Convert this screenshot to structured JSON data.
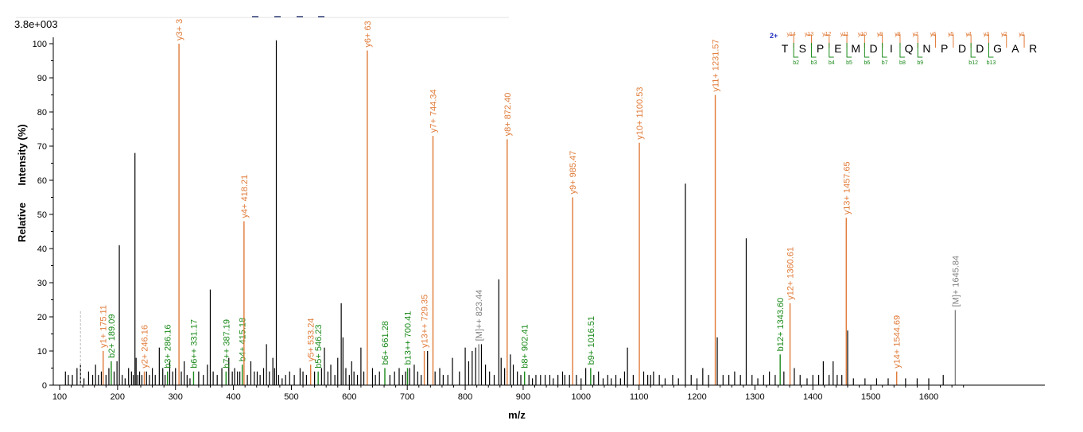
{
  "colors": {
    "y_ion": "#e07b39",
    "b_ion": "#1a8a1a",
    "precursor": "#808080",
    "other": "#000000",
    "axis": "#000000"
  },
  "chart_data": {
    "type": "bar",
    "title": "",
    "scale_label": "3.8e+003",
    "xlabel": "m/z",
    "ylabel_parts": [
      "Relative",
      "Intensity (%)"
    ],
    "xlim": [
      95,
      1668
    ],
    "ylim": [
      0,
      102
    ],
    "x_ticks": [
      100,
      200,
      300,
      400,
      500,
      600,
      700,
      800,
      900,
      1000,
      1100,
      1200,
      1300,
      1400,
      1500,
      1600
    ],
    "y_ticks": [
      0,
      10,
      20,
      30,
      40,
      50,
      60,
      70,
      80,
      90,
      100
    ],
    "labeled_peaks": [
      {
        "mz": 175.11,
        "intensity": 10,
        "ion": "y",
        "label": "y1+ 175.11"
      },
      {
        "mz": 189.09,
        "intensity": 7,
        "ion": "b",
        "label": "b2+ 189.09"
      },
      {
        "mz": 246.16,
        "intensity": 4,
        "ion": "y",
        "label": "y2+ 246.16"
      },
      {
        "mz": 286.16,
        "intensity": 4,
        "ion": "b",
        "label": "b3+ 286.16"
      },
      {
        "mz": 306.0,
        "intensity": 100,
        "ion": "y",
        "label": "y3+ 3"
      },
      {
        "mz": 331.17,
        "intensity": 4,
        "ion": "b",
        "label": "b6++ 331.17"
      },
      {
        "mz": 387.19,
        "intensity": 4,
        "ion": "b",
        "label": "b7++ 387.19"
      },
      {
        "mz": 415.18,
        "intensity": 6,
        "ion": "b",
        "label": "b4+ 415.18"
      },
      {
        "mz": 418.21,
        "intensity": 48,
        "ion": "y",
        "label": "y4+ 418.21"
      },
      {
        "mz": 533.24,
        "intensity": 6,
        "ion": "y",
        "label": "y5+ 533.24"
      },
      {
        "mz": 546.23,
        "intensity": 4,
        "ion": "b",
        "label": "b5+ 546.23"
      },
      {
        "mz": 631.0,
        "intensity": 98,
        "ion": "y",
        "label": "y6+ 63"
      },
      {
        "mz": 661.28,
        "intensity": 5,
        "ion": "b",
        "label": "b6+ 661.28"
      },
      {
        "mz": 700.41,
        "intensity": 5,
        "ion": "b",
        "label": "b13++ 700.41"
      },
      {
        "mz": 729.35,
        "intensity": 10,
        "ion": "y",
        "label": "y13++ 729.35"
      },
      {
        "mz": 744.34,
        "intensity": 73,
        "ion": "y",
        "label": "y7+ 744.34"
      },
      {
        "mz": 823.44,
        "intensity": 12,
        "ion": "p",
        "label": "[M]++ 823.44"
      },
      {
        "mz": 872.4,
        "intensity": 72,
        "ion": "y",
        "label": "y8+ 872.40"
      },
      {
        "mz": 902.41,
        "intensity": 4,
        "ion": "b",
        "label": "b8+ 902.41"
      },
      {
        "mz": 985.47,
        "intensity": 55,
        "ion": "y",
        "label": "y9+ 985.47"
      },
      {
        "mz": 1016.51,
        "intensity": 5,
        "ion": "b",
        "label": "b9+ 1016.51"
      },
      {
        "mz": 1100.53,
        "intensity": 71,
        "ion": "y",
        "label": "y10+ 1100.53"
      },
      {
        "mz": 1231.57,
        "intensity": 85,
        "ion": "y",
        "label": "y11+ 1231.57"
      },
      {
        "mz": 1343.6,
        "intensity": 9,
        "ion": "b",
        "label": "b12+ 1343.60"
      },
      {
        "mz": 1360.61,
        "intensity": 24,
        "ion": "y",
        "label": "y12+ 1360.61"
      },
      {
        "mz": 1457.65,
        "intensity": 49,
        "ion": "y",
        "label": "y13+ 1457.65"
      },
      {
        "mz": 1544.69,
        "intensity": 4,
        "ion": "y",
        "label": "y14+ 1544.69"
      },
      {
        "mz": 1645.84,
        "intensity": 22,
        "ion": "p",
        "label": "[M]+ 1645.84"
      }
    ],
    "unlabeled_peaks": [
      [
        110,
        4
      ],
      [
        115,
        3
      ],
      [
        122,
        3
      ],
      [
        130,
        5
      ],
      [
        136,
        6
      ],
      [
        142,
        2
      ],
      [
        150,
        4
      ],
      [
        157,
        3
      ],
      [
        162,
        6
      ],
      [
        167,
        3
      ],
      [
        172,
        4
      ],
      [
        180,
        3
      ],
      [
        185,
        5
      ],
      [
        194,
        4
      ],
      [
        199,
        7
      ],
      [
        203,
        41
      ],
      [
        208,
        3
      ],
      [
        213,
        2
      ],
      [
        219,
        5
      ],
      [
        224,
        4
      ],
      [
        227,
        3
      ],
      [
        230,
        68
      ],
      [
        232,
        8
      ],
      [
        235,
        3
      ],
      [
        238,
        4
      ],
      [
        242,
        3
      ],
      [
        250,
        4
      ],
      [
        255,
        3
      ],
      [
        260,
        5
      ],
      [
        265,
        3
      ],
      [
        272,
        11
      ],
      [
        278,
        5
      ],
      [
        282,
        3
      ],
      [
        290,
        7
      ],
      [
        295,
        4
      ],
      [
        300,
        5
      ],
      [
        310,
        4
      ],
      [
        315,
        7
      ],
      [
        320,
        3
      ],
      [
        325,
        2
      ],
      [
        340,
        4
      ],
      [
        348,
        3
      ],
      [
        355,
        6
      ],
      [
        360,
        28
      ],
      [
        365,
        4
      ],
      [
        372,
        3
      ],
      [
        380,
        5
      ],
      [
        392,
        8
      ],
      [
        398,
        4
      ],
      [
        402,
        5
      ],
      [
        407,
        4
      ],
      [
        411,
        4
      ],
      [
        424,
        3
      ],
      [
        430,
        7
      ],
      [
        436,
        4
      ],
      [
        441,
        4
      ],
      [
        446,
        3
      ],
      [
        452,
        5
      ],
      [
        457,
        12
      ],
      [
        462,
        4
      ],
      [
        468,
        8
      ],
      [
        471,
        5
      ],
      [
        474,
        101
      ],
      [
        478,
        3
      ],
      [
        484,
        2
      ],
      [
        490,
        3
      ],
      [
        497,
        4
      ],
      [
        505,
        3
      ],
      [
        515,
        5
      ],
      [
        520,
        4
      ],
      [
        526,
        3
      ],
      [
        540,
        4
      ],
      [
        552,
        5
      ],
      [
        557,
        11
      ],
      [
        563,
        4
      ],
      [
        568,
        6
      ],
      [
        575,
        3
      ],
      [
        580,
        8
      ],
      [
        586,
        24
      ],
      [
        589,
        14
      ],
      [
        594,
        5
      ],
      [
        600,
        3
      ],
      [
        604,
        7
      ],
      [
        608,
        4
      ],
      [
        614,
        3
      ],
      [
        620,
        11
      ],
      [
        625,
        4
      ],
      [
        640,
        5
      ],
      [
        645,
        3
      ],
      [
        652,
        4
      ],
      [
        670,
        3
      ],
      [
        678,
        4
      ],
      [
        686,
        5
      ],
      [
        692,
        3
      ],
      [
        697,
        4
      ],
      [
        704,
        5
      ],
      [
        712,
        6
      ],
      [
        718,
        4
      ],
      [
        724,
        3
      ],
      [
        735,
        10
      ],
      [
        748,
        4
      ],
      [
        756,
        5
      ],
      [
        762,
        3
      ],
      [
        770,
        3
      ],
      [
        778,
        8
      ],
      [
        790,
        4
      ],
      [
        800,
        11
      ],
      [
        806,
        7
      ],
      [
        812,
        10
      ],
      [
        818,
        11
      ],
      [
        828,
        12
      ],
      [
        835,
        6
      ],
      [
        842,
        4
      ],
      [
        850,
        3
      ],
      [
        858,
        31
      ],
      [
        862,
        8
      ],
      [
        868,
        5
      ],
      [
        878,
        9
      ],
      [
        883,
        6
      ],
      [
        890,
        4
      ],
      [
        896,
        3
      ],
      [
        910,
        3
      ],
      [
        916,
        2
      ],
      [
        922,
        3
      ],
      [
        930,
        3
      ],
      [
        938,
        3
      ],
      [
        946,
        3
      ],
      [
        952,
        2
      ],
      [
        960,
        3
      ],
      [
        968,
        4
      ],
      [
        972,
        3
      ],
      [
        980,
        3
      ],
      [
        992,
        3
      ],
      [
        1000,
        2
      ],
      [
        1008,
        5
      ],
      [
        1022,
        3
      ],
      [
        1030,
        4
      ],
      [
        1038,
        2
      ],
      [
        1046,
        3
      ],
      [
        1052,
        2
      ],
      [
        1060,
        3
      ],
      [
        1068,
        2
      ],
      [
        1075,
        4
      ],
      [
        1080,
        11
      ],
      [
        1090,
        3
      ],
      [
        1108,
        4
      ],
      [
        1115,
        3
      ],
      [
        1120,
        3
      ],
      [
        1125,
        4
      ],
      [
        1135,
        3
      ],
      [
        1145,
        2
      ],
      [
        1158,
        3
      ],
      [
        1168,
        2
      ],
      [
        1180,
        59
      ],
      [
        1190,
        3
      ],
      [
        1200,
        2
      ],
      [
        1210,
        5
      ],
      [
        1220,
        3
      ],
      [
        1235,
        14
      ],
      [
        1245,
        3
      ],
      [
        1255,
        3
      ],
      [
        1265,
        4
      ],
      [
        1275,
        3
      ],
      [
        1285,
        43
      ],
      [
        1295,
        3
      ],
      [
        1305,
        2
      ],
      [
        1315,
        3
      ],
      [
        1325,
        4
      ],
      [
        1335,
        3
      ],
      [
        1350,
        4
      ],
      [
        1368,
        5
      ],
      [
        1378,
        3
      ],
      [
        1390,
        2
      ],
      [
        1400,
        3
      ],
      [
        1410,
        3
      ],
      [
        1418,
        7
      ],
      [
        1428,
        3
      ],
      [
        1435,
        7
      ],
      [
        1442,
        3
      ],
      [
        1450,
        3
      ],
      [
        1460,
        16
      ],
      [
        1470,
        2
      ],
      [
        1490,
        2
      ],
      [
        1510,
        2
      ],
      [
        1530,
        2
      ],
      [
        1560,
        2
      ],
      [
        1580,
        2
      ],
      [
        1600,
        2
      ],
      [
        1625,
        3
      ]
    ],
    "dashed_marker": {
      "mz": 136,
      "intensity": 22
    },
    "sequence": {
      "charge": "2+",
      "residues": [
        "T",
        "S",
        "P",
        "E",
        "M",
        "D",
        "I",
        "Q",
        "N",
        "P",
        "D",
        "D",
        "G",
        "A",
        "R"
      ],
      "y_labels": [
        "y14",
        "y13",
        "y12",
        "y11",
        "y10",
        "y9",
        "y8",
        "y7",
        "y6",
        "y5",
        "y4",
        "y3",
        "y2",
        "y1"
      ],
      "b_labels": [
        "b2",
        "b3",
        "b4",
        "b5",
        "b6",
        "b7",
        "b8",
        "b9",
        "",
        "",
        "b12",
        "b13",
        "",
        ""
      ]
    }
  }
}
